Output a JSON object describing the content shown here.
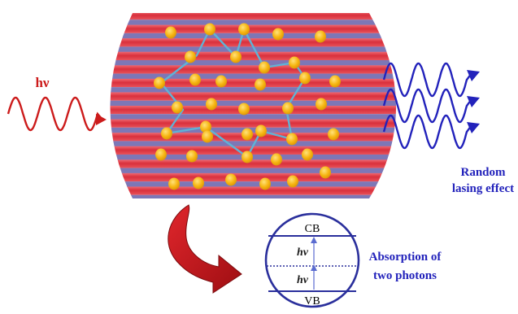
{
  "incident": {
    "label": "hν",
    "color": "#cc1b1b"
  },
  "output": {
    "label_line1": "Random",
    "label_line2": "lasing effect",
    "color": "#2222bb"
  },
  "medium": {
    "stripe_colors": [
      "#e8474f",
      "#7d77b6"
    ],
    "particle_color": "#f6b40f",
    "path_color": "#5fb3d6"
  },
  "band": {
    "cb_label": "CB",
    "vb_label": "VB",
    "hv_upper": "hν",
    "hv_lower": "hν",
    "caption_line1": "Absorption of",
    "caption_line2": "two photons",
    "circle_color": "#2a2f9c",
    "hv_color": "#1a1a1a"
  },
  "connector": {
    "color": "#c8191e"
  }
}
